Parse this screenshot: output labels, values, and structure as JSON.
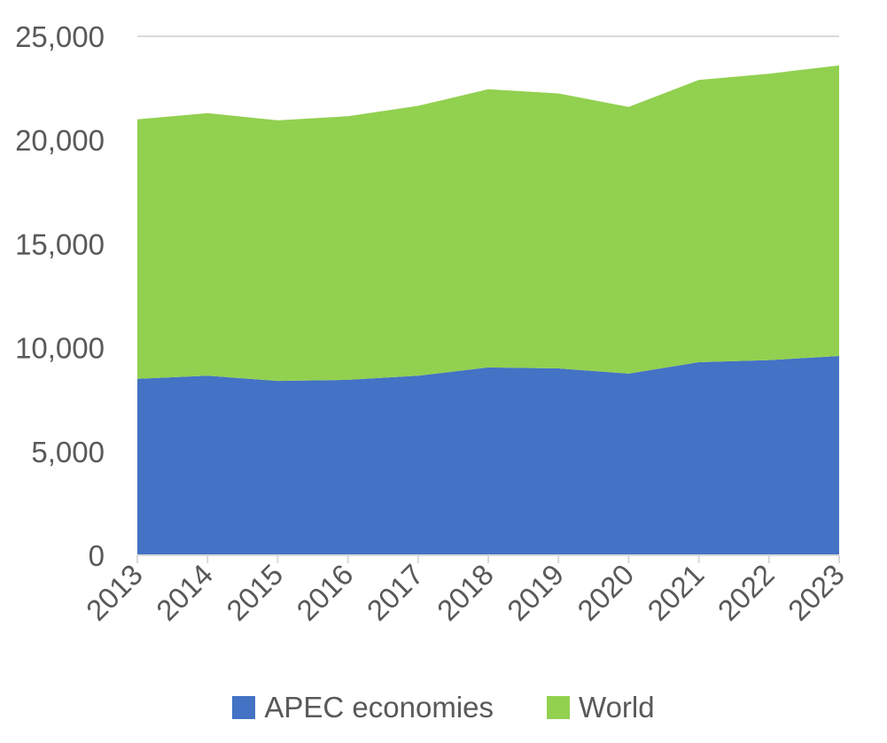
{
  "chart_data": {
    "type": "area",
    "stacked": true,
    "categories": [
      "2013",
      "2014",
      "2015",
      "2016",
      "2017",
      "2018",
      "2019",
      "2020",
      "2021",
      "2022",
      "2023"
    ],
    "series": [
      {
        "name": "APEC economies",
        "color": "#4472C4",
        "values": [
          8500,
          8650,
          8400,
          8450,
          8650,
          9050,
          9000,
          8750,
          9300,
          9400,
          9600
        ]
      },
      {
        "name": "World",
        "color": "#92D050",
        "values": [
          12500,
          12650,
          12550,
          12700,
          13000,
          13400,
          13250,
          12850,
          13600,
          13800,
          14000
        ]
      }
    ],
    "ylim": [
      0,
      25000
    ],
    "yticks": [
      "0",
      "5,000",
      "10,000",
      "15,000",
      "20,000",
      "25,000"
    ],
    "ytick_values": [
      0,
      5000,
      10000,
      15000,
      20000,
      25000
    ],
    "grid": true,
    "legend": "bottom",
    "title": "",
    "xlabel": "",
    "ylabel": ""
  }
}
